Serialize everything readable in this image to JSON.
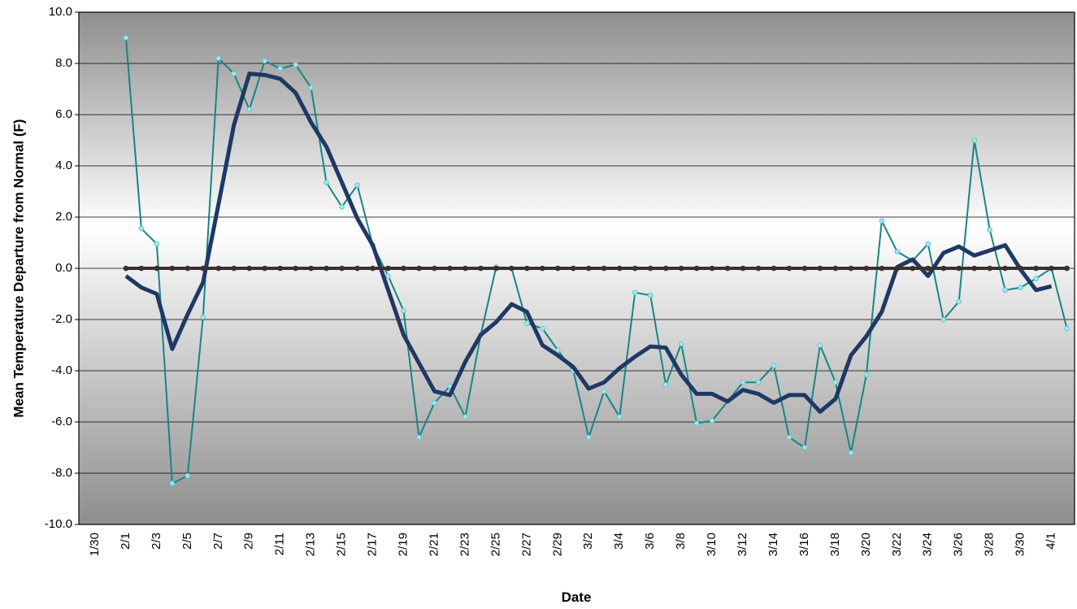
{
  "chart_data": {
    "type": "line",
    "x_label": "Date",
    "y_label": "Mean Temperature Departure from Normal (F)",
    "categories": [
      null,
      "1/30",
      null,
      "2/1",
      null,
      "2/3",
      null,
      "2/5",
      null,
      "2/7",
      null,
      "2/9",
      null,
      "2/11",
      null,
      "2/13",
      null,
      "2/15",
      null,
      "2/17",
      null,
      "2/19",
      null,
      "2/21",
      null,
      "2/23",
      null,
      "2/25",
      null,
      "2/27",
      null,
      "2/29",
      null,
      "3/2",
      null,
      "3/4",
      null,
      "3/6",
      null,
      "3/8",
      null,
      "3/10",
      null,
      "3/12",
      null,
      "3/14",
      null,
      "3/16",
      null,
      "3/18",
      null,
      "3/20",
      null,
      "3/22",
      null,
      "3/24",
      null,
      "3/26",
      null,
      "3/28",
      null,
      "3/30",
      null,
      "4/1",
      null
    ],
    "series": [
      {
        "color": "#178585",
        "marker_color": "#a8e6f0",
        "width": 2,
        "markers": true,
        "values": [
          null,
          null,
          null,
          9.0,
          1.55,
          0.95,
          -8.4,
          -8.1,
          -1.9,
          8.2,
          7.6,
          6.2,
          8.1,
          7.8,
          7.95,
          7.05,
          3.35,
          2.4,
          3.25,
          0.9,
          -0.3,
          -1.65,
          -6.6,
          -5.25,
          -4.6,
          -5.8,
          -2.6,
          0.05,
          0.0,
          -2.15,
          -2.35,
          -3.2,
          -4.0,
          -6.6,
          -4.8,
          -5.8,
          -0.95,
          -1.05,
          -4.55,
          -2.95,
          -6.05,
          -5.95,
          -5.2,
          -4.45,
          -4.45,
          -3.8,
          -6.6,
          -7.0,
          -3.0,
          -4.45,
          -7.2,
          -4.15,
          1.85,
          0.65,
          0.3,
          0.95,
          -2.0,
          -1.3,
          5.0,
          1.5,
          -0.85,
          -0.75,
          -0.4,
          0.0,
          -2.35
        ]
      },
      {
        "color": "#1f3864",
        "width": 5,
        "markers": false,
        "values": [
          null,
          null,
          null,
          -0.3,
          -0.75,
          -1.0,
          -3.15,
          -1.8,
          -0.55,
          2.5,
          5.6,
          7.6,
          7.55,
          7.4,
          6.85,
          5.7,
          4.75,
          3.35,
          1.95,
          0.9,
          -0.85,
          -2.6,
          -3.7,
          -4.8,
          -4.95,
          -3.65,
          -2.6,
          -2.1,
          -1.4,
          -1.7,
          -3.0,
          -3.4,
          -3.85,
          -4.7,
          -4.45,
          -3.9,
          -3.45,
          -3.05,
          -3.1,
          -4.15,
          -4.9,
          -4.9,
          -5.2,
          -4.75,
          -4.9,
          -5.25,
          -4.95,
          -4.95,
          -5.6,
          -5.1,
          -3.4,
          -2.65,
          -1.7,
          0.05,
          0.35,
          -0.3,
          0.6,
          0.85,
          0.5,
          0.7,
          0.9,
          -0.05,
          -0.85,
          -0.7,
          null
        ]
      },
      {
        "color": "#3a2f2f",
        "marker_color": "#3a2f2f",
        "width": 4,
        "markers": true,
        "values": [
          null,
          null,
          null,
          0,
          0,
          0,
          0,
          0,
          0,
          0,
          0,
          0,
          0,
          0,
          0,
          0,
          0,
          0,
          0,
          0,
          0,
          0,
          0,
          0,
          0,
          0,
          0,
          0,
          0,
          0,
          0,
          0,
          0,
          0,
          0,
          0,
          0,
          0,
          0,
          0,
          0,
          0,
          0,
          0,
          0,
          0,
          0,
          0,
          0,
          0,
          0,
          0,
          0,
          0,
          0,
          0,
          0,
          0,
          0,
          0,
          0,
          0,
          0,
          0,
          0
        ]
      }
    ],
    "ylim": [
      -10,
      10
    ],
    "yticks": [
      {
        "value": -10,
        "label": "-10.0"
      },
      {
        "value": -8,
        "label": "-8.0"
      },
      {
        "value": -6,
        "label": "-6.0"
      },
      {
        "value": -4,
        "label": "-4.0"
      },
      {
        "value": -2,
        "label": "-2.0"
      },
      {
        "value": 0,
        "label": "0.0"
      },
      {
        "value": 2,
        "label": "2.0"
      },
      {
        "value": 4,
        "label": "4.0"
      },
      {
        "value": 6,
        "label": "6.0"
      },
      {
        "value": 8,
        "label": "8.0"
      },
      {
        "value": 10,
        "label": "10.0"
      }
    ],
    "grid": true
  }
}
